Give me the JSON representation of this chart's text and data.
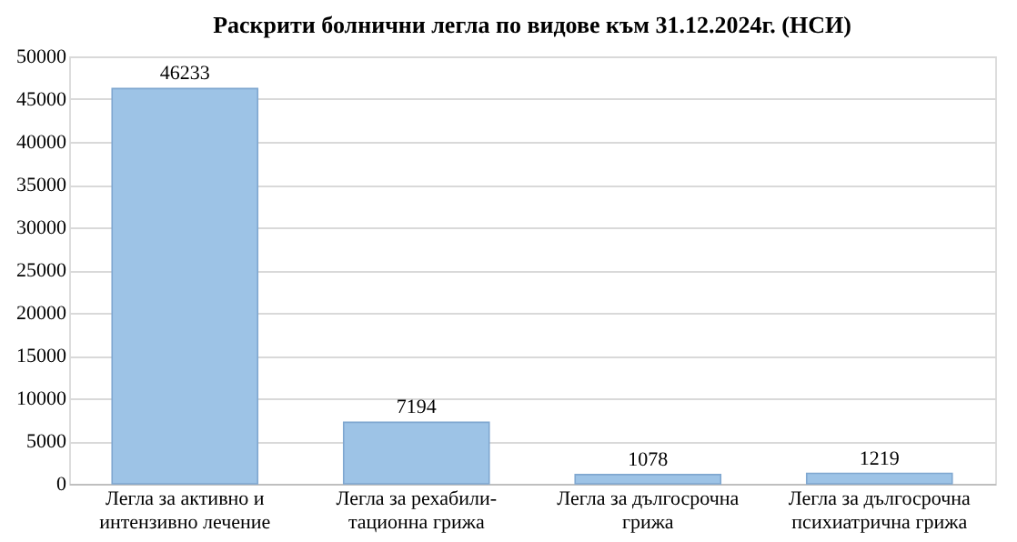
{
  "chart_data": {
    "type": "bar",
    "title": "Раскрити болнични легла по видове към 31.12.2024г. (НСИ)",
    "categories": [
      "Легла за активно и\nинтензивно лечение",
      "Легла за рехабили-\nтационна грижа",
      "Легла за дългосрочна\nгрижа",
      "Легла за дългосрочна\nпсихиатрична грижа"
    ],
    "values": [
      46233,
      7194,
      1078,
      1219
    ],
    "color": "#9dc3e6",
    "ylim": [
      0,
      50000
    ],
    "yticks": [
      0,
      5000,
      10000,
      15000,
      20000,
      25000,
      30000,
      35000,
      40000,
      45000,
      50000
    ],
    "grid": "y",
    "data_labels": true
  }
}
